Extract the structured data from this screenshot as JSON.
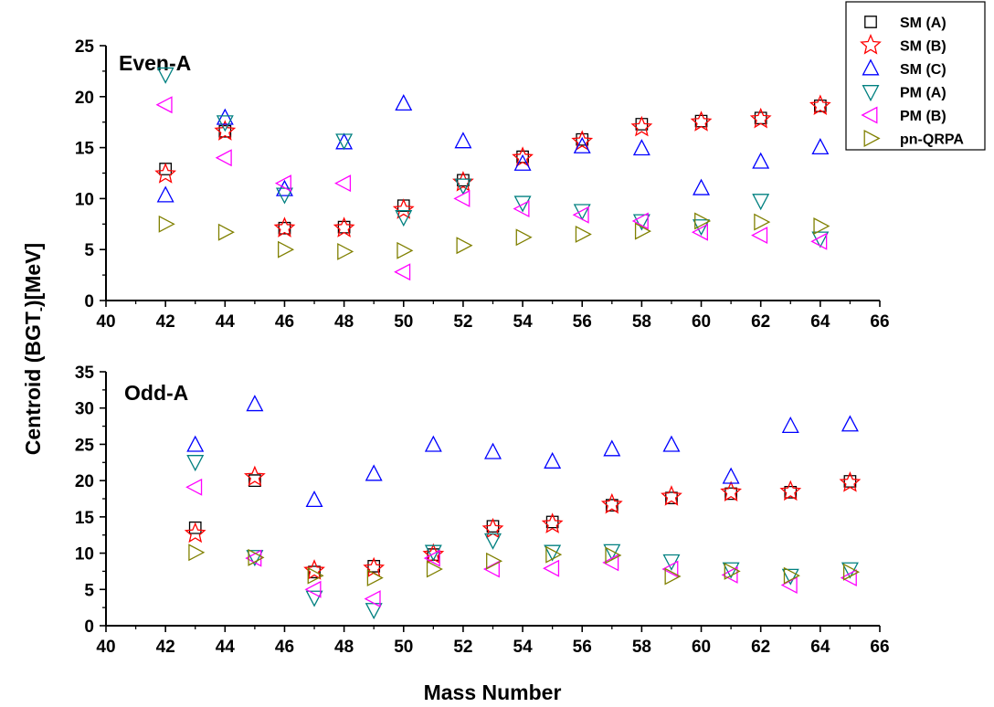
{
  "chart_data": {
    "type": "scatter",
    "xlabel": "Mass Number",
    "ylabel": "Centroid (BGT",
    "ylabel_sub": "-",
    "ylabel_unit": ")[MeV]",
    "legend_position": "top-right",
    "grid": false,
    "series_styles": [
      {
        "name": "SM (A)",
        "marker": "square",
        "color": "#000000"
      },
      {
        "name": "SM (B)",
        "marker": "star",
        "color": "#ff0000"
      },
      {
        "name": "SM (C)",
        "marker": "triangle-up",
        "color": "#0000ff"
      },
      {
        "name": "PM (A)",
        "marker": "triangle-down",
        "color": "#008080"
      },
      {
        "name": "PM (B)",
        "marker": "triangle-left",
        "color": "#ff00ff"
      },
      {
        "name": "pn-QRPA",
        "marker": "triangle-right",
        "color": "#808000"
      }
    ],
    "panels": [
      {
        "title": "Even-A",
        "xlim": [
          40,
          66
        ],
        "ylim": [
          0,
          25
        ],
        "xticks": [
          40,
          42,
          44,
          46,
          48,
          50,
          52,
          54,
          56,
          58,
          60,
          62,
          64,
          66
        ],
        "yticks": [
          0,
          5,
          10,
          15,
          20,
          25
        ],
        "series": [
          {
            "name": "SM (A)",
            "x": [
              42,
              44,
              46,
              48,
              50,
              52,
              54,
              56,
              58,
              60,
              62,
              64
            ],
            "y": [
              12.9,
              16.6,
              7.1,
              7.2,
              9.3,
              11.8,
              14.1,
              15.8,
              17.3,
              17.6,
              17.9,
              19.1
            ]
          },
          {
            "name": "SM (B)",
            "x": [
              42,
              44,
              46,
              48,
              50,
              52,
              54,
              56,
              58,
              60,
              62,
              64
            ],
            "y": [
              12.4,
              16.6,
              7.1,
              7.1,
              8.9,
              11.6,
              14.0,
              15.6,
              17.0,
              17.5,
              17.8,
              19.1
            ]
          },
          {
            "name": "SM (C)",
            "x": [
              42,
              44,
              46,
              48,
              50,
              52,
              54,
              56,
              58,
              60,
              62,
              64
            ],
            "y": [
              10.3,
              17.9,
              10.9,
              15.5,
              19.3,
              15.6,
              13.4,
              15.1,
              14.9,
              11.0,
              13.6,
              15.0
            ]
          },
          {
            "name": "PM (A)",
            "x": [
              42,
              44,
              46,
              48,
              50,
              52,
              54,
              56,
              58,
              60,
              62,
              64
            ],
            "y": [
              22.2,
              17.5,
              10.4,
              15.7,
              8.2,
              11.3,
              9.6,
              8.8,
              7.8,
              7.3,
              9.8,
              6.1
            ]
          },
          {
            "name": "PM (B)",
            "x": [
              42,
              44,
              46,
              48,
              50,
              52,
              54,
              56,
              58,
              60,
              62,
              64
            ],
            "y": [
              19.2,
              14.0,
              11.5,
              11.5,
              2.8,
              10.0,
              9.0,
              8.4,
              7.8,
              6.7,
              6.4,
              5.8
            ]
          },
          {
            "name": "pn-QRPA",
            "x": [
              42,
              44,
              46,
              48,
              50,
              52,
              54,
              56,
              58,
              60,
              62,
              64
            ],
            "y": [
              7.5,
              6.7,
              5.0,
              4.8,
              4.9,
              5.4,
              6.2,
              6.5,
              6.8,
              7.8,
              7.7,
              7.3
            ]
          }
        ]
      },
      {
        "title": "Odd-A",
        "xlim": [
          40,
          66
        ],
        "ylim": [
          0,
          35
        ],
        "xticks": [
          40,
          42,
          44,
          46,
          48,
          50,
          52,
          54,
          56,
          58,
          60,
          62,
          64,
          66
        ],
        "yticks": [
          0,
          5,
          10,
          15,
          20,
          25,
          30,
          35
        ],
        "series": [
          {
            "name": "SM (A)",
            "x": [
              43,
              45,
              47,
              49,
              51,
              53,
              55,
              57,
              59,
              61,
              63,
              65
            ],
            "y": [
              13.5,
              20.0,
              7.4,
              8.2,
              9.8,
              13.7,
              14.3,
              16.6,
              17.6,
              18.2,
              18.4,
              19.9
            ]
          },
          {
            "name": "SM (B)",
            "x": [
              43,
              45,
              47,
              49,
              51,
              53,
              55,
              57,
              59,
              61,
              63,
              65
            ],
            "y": [
              12.7,
              20.5,
              7.6,
              7.9,
              9.8,
              13.3,
              14.0,
              16.7,
              17.8,
              18.4,
              18.5,
              19.7
            ]
          },
          {
            "name": "SM (C)",
            "x": [
              43,
              45,
              47,
              49,
              51,
              53,
              55,
              57,
              59,
              61,
              63,
              65
            ],
            "y": [
              24.9,
              30.5,
              17.3,
              20.9,
              24.9,
              23.9,
              22.6,
              24.3,
              24.9,
              20.5,
              27.5,
              27.7
            ]
          },
          {
            "name": "PM (A)",
            "x": [
              43,
              45,
              47,
              49,
              51,
              53,
              55,
              57,
              59,
              61,
              63,
              65
            ],
            "y": [
              22.6,
              9.5,
              3.9,
              2.2,
              10.2,
              11.8,
              10.2,
              10.3,
              8.9,
              7.8,
              6.9,
              7.8
            ]
          },
          {
            "name": "PM (B)",
            "x": [
              43,
              45,
              47,
              49,
              51,
              53,
              55,
              57,
              59,
              61,
              63,
              65
            ],
            "y": [
              19.1,
              9.3,
              5.0,
              3.7,
              9.3,
              7.8,
              7.9,
              8.7,
              7.8,
              7.0,
              5.6,
              6.6
            ]
          },
          {
            "name": "pn-QRPA",
            "x": [
              43,
              45,
              47,
              49,
              51,
              53,
              55,
              57,
              59,
              61,
              63,
              65
            ],
            "y": [
              10.1,
              9.4,
              6.9,
              6.6,
              7.8,
              8.9,
              9.8,
              9.7,
              6.8,
              7.5,
              6.9,
              7.4
            ]
          }
        ]
      }
    ]
  }
}
